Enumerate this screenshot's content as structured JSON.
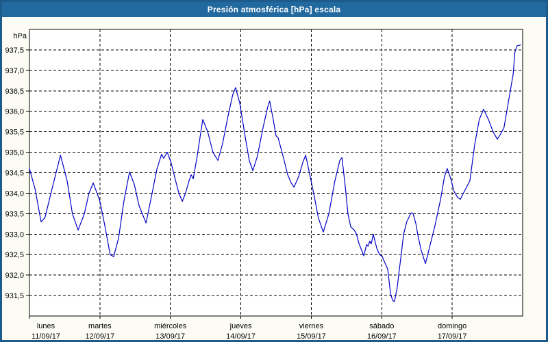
{
  "window": {
    "title": "Presión atmosférica [hPa] escala"
  },
  "colors": {
    "titlebar_bg": "#2269A0",
    "titlebar_text": "#FFFFFF",
    "window_border": "#1D5B8C",
    "content_bg": "#FCFCF4",
    "plot_bg": "#FFFFFF",
    "line": "#0000C8",
    "grid": "#000000",
    "text": "#000000"
  },
  "chart_data": {
    "type": "line",
    "title": "Presión atmosférica [hPa] escala",
    "unit_label": "hPa",
    "legend": "none",
    "y_axis": {
      "min": 931.0,
      "max": 938.0,
      "grid": true,
      "ticks": [
        931.5,
        932.0,
        932.5,
        933.0,
        933.5,
        934.0,
        934.5,
        935.0,
        935.5,
        936.0,
        936.5,
        937.0,
        937.5
      ],
      "tick_labels": [
        "931,5",
        "932,0",
        "932,5",
        "933,0",
        "933,5",
        "934,0",
        "934,5",
        "935,0",
        "935,5",
        "936,0",
        "936,5",
        "937,0",
        "937,5"
      ]
    },
    "x_axis": {
      "grid": true,
      "unit": "days",
      "days": [
        {
          "name": "lunes",
          "date": "11/09/17"
        },
        {
          "name": "martes",
          "date": "12/09/17"
        },
        {
          "name": "miércoles",
          "date": "13/09/17"
        },
        {
          "name": "jueves",
          "date": "14/09/17"
        },
        {
          "name": "viernes",
          "date": "15/09/17"
        },
        {
          "name": "sábado",
          "date": "16/09/17"
        },
        {
          "name": "domingo",
          "date": "17/09/17"
        }
      ]
    },
    "series": [
      {
        "name": "Presión atmosférica",
        "color": "#0000C8",
        "points_days_hpa": [
          [
            0.0,
            934.6
          ],
          [
            0.08,
            934.1
          ],
          [
            0.165,
            933.3
          ],
          [
            0.22,
            933.4
          ],
          [
            0.32,
            934.1
          ],
          [
            0.44,
            934.93
          ],
          [
            0.535,
            934.3
          ],
          [
            0.61,
            933.5
          ],
          [
            0.69,
            933.1
          ],
          [
            0.78,
            933.5
          ],
          [
            0.845,
            934.0
          ],
          [
            0.905,
            934.25
          ],
          [
            0.97,
            933.95
          ],
          [
            1.0,
            933.8
          ],
          [
            1.07,
            933.2
          ],
          [
            1.145,
            932.5
          ],
          [
            1.195,
            932.45
          ],
          [
            1.265,
            932.9
          ],
          [
            1.34,
            933.8
          ],
          [
            1.42,
            934.52
          ],
          [
            1.49,
            934.2
          ],
          [
            1.555,
            933.7
          ],
          [
            1.655,
            933.27
          ],
          [
            1.73,
            933.9
          ],
          [
            1.81,
            934.6
          ],
          [
            1.875,
            934.95
          ],
          [
            1.905,
            934.85
          ],
          [
            1.955,
            935.0
          ],
          [
            2.01,
            934.75
          ],
          [
            2.06,
            934.4
          ],
          [
            2.12,
            934.0
          ],
          [
            2.17,
            933.8
          ],
          [
            2.215,
            934.0
          ],
          [
            2.265,
            934.3
          ],
          [
            2.295,
            934.45
          ],
          [
            2.325,
            934.35
          ],
          [
            2.38,
            934.9
          ],
          [
            2.46,
            935.8
          ],
          [
            2.53,
            935.5
          ],
          [
            2.605,
            935.0
          ],
          [
            2.675,
            934.8
          ],
          [
            2.74,
            935.2
          ],
          [
            2.82,
            935.9
          ],
          [
            2.885,
            936.4
          ],
          [
            2.925,
            936.58
          ],
          [
            2.985,
            936.2
          ],
          [
            3.06,
            935.4
          ],
          [
            3.12,
            934.8
          ],
          [
            3.17,
            934.55
          ],
          [
            3.235,
            934.9
          ],
          [
            3.315,
            935.6
          ],
          [
            3.38,
            936.1
          ],
          [
            3.41,
            936.25
          ],
          [
            3.46,
            935.8
          ],
          [
            3.5,
            935.4
          ],
          [
            3.53,
            935.35
          ],
          [
            3.6,
            934.9
          ],
          [
            3.665,
            934.45
          ],
          [
            3.715,
            934.25
          ],
          [
            3.755,
            934.15
          ],
          [
            3.82,
            934.4
          ],
          [
            3.88,
            934.75
          ],
          [
            3.92,
            934.93
          ],
          [
            3.985,
            934.4
          ],
          [
            4.045,
            933.9
          ],
          [
            4.1,
            933.4
          ],
          [
            4.17,
            933.05
          ],
          [
            4.25,
            933.5
          ],
          [
            4.335,
            934.3
          ],
          [
            4.405,
            934.8
          ],
          [
            4.435,
            934.87
          ],
          [
            4.48,
            934.2
          ],
          [
            4.52,
            933.5
          ],
          [
            4.56,
            933.18
          ],
          [
            4.61,
            933.1
          ],
          [
            4.64,
            933.0
          ],
          [
            4.675,
            932.78
          ],
          [
            4.745,
            932.47
          ],
          [
            4.785,
            932.75
          ],
          [
            4.805,
            932.7
          ],
          [
            4.83,
            932.83
          ],
          [
            4.85,
            932.76
          ],
          [
            4.88,
            933.0
          ],
          [
            4.93,
            932.65
          ],
          [
            4.97,
            932.5
          ],
          [
            5.005,
            932.46
          ],
          [
            5.045,
            932.3
          ],
          [
            5.085,
            932.15
          ],
          [
            5.125,
            931.55
          ],
          [
            5.155,
            931.38
          ],
          [
            5.18,
            931.35
          ],
          [
            5.22,
            931.7
          ],
          [
            5.24,
            932.0
          ],
          [
            5.28,
            932.55
          ],
          [
            5.31,
            933.0
          ],
          [
            5.355,
            933.3
          ],
          [
            5.415,
            933.52
          ],
          [
            5.445,
            933.5
          ],
          [
            5.485,
            933.25
          ],
          [
            5.51,
            933.0
          ],
          [
            5.56,
            932.6
          ],
          [
            5.62,
            932.28
          ],
          [
            5.685,
            932.72
          ],
          [
            5.755,
            933.2
          ],
          [
            5.835,
            933.85
          ],
          [
            5.89,
            934.4
          ],
          [
            5.93,
            934.6
          ],
          [
            5.98,
            934.35
          ],
          [
            6.025,
            934.05
          ],
          [
            6.075,
            933.9
          ],
          [
            6.115,
            933.85
          ],
          [
            6.175,
            934.05
          ],
          [
            6.25,
            934.3
          ],
          [
            6.32,
            935.2
          ],
          [
            6.385,
            935.8
          ],
          [
            6.445,
            936.05
          ],
          [
            6.515,
            935.8
          ],
          [
            6.58,
            935.5
          ],
          [
            6.64,
            935.32
          ],
          [
            6.69,
            935.45
          ],
          [
            6.735,
            935.6
          ],
          [
            6.785,
            936.1
          ],
          [
            6.835,
            936.6
          ],
          [
            6.865,
            936.9
          ],
          [
            6.89,
            937.45
          ],
          [
            6.92,
            937.6
          ],
          [
            6.97,
            937.62
          ]
        ]
      }
    ]
  }
}
